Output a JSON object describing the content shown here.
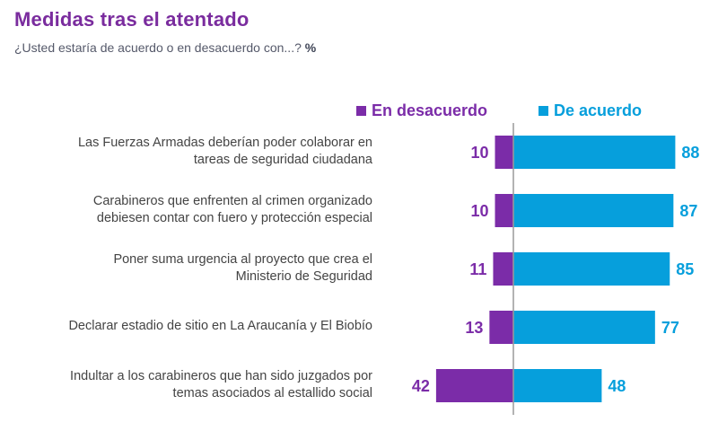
{
  "title": "Medidas tras el atentado",
  "subtitle": "¿Usted estaría de acuerdo o en desacuerdo con...?",
  "unit": "%",
  "colors": {
    "title": "#7a2c9e",
    "desacuerdo": "#7b2ca8",
    "acuerdo": "#069fdc",
    "label": "#444444",
    "axis": "#9a9a9a"
  },
  "chart_data": {
    "type": "bar",
    "orientation": "horizontal-diverging",
    "title": "Medidas tras el atentado",
    "subtitle": "¿Usted estaría de acuerdo o en desacuerdo con...? %",
    "xlabel": "",
    "ylabel": "",
    "legend_position": "top",
    "grid": false,
    "xlim": [
      -50,
      100
    ],
    "categories": [
      "Las Fuerzas Armadas deberían poder colaborar en tareas de seguridad ciudadana",
      "Carabineros que enfrenten al crimen organizado debiesen contar con fuero y protección especial",
      "Poner suma urgencia al proyecto que crea el Ministerio de Seguridad",
      "Declarar estadio de sitio en La Araucanía y El Biobío",
      "Indultar a los carabineros que han sido juzgados por temas asociados al estallido social"
    ],
    "category_lines": [
      [
        "Las Fuerzas Armadas deberían poder colaborar en",
        "tareas de seguridad ciudadana"
      ],
      [
        "Carabineros que enfrenten al crimen organizado",
        "debiesen contar con fuero y protección especial"
      ],
      [
        "Poner suma urgencia al proyecto que crea el",
        "Ministerio de Seguridad"
      ],
      [
        "Declarar estadio de sitio en La Araucanía y El Biobío"
      ],
      [
        "Indultar a los carabineros que han sido juzgados por",
        "temas asociados al estallido social"
      ]
    ],
    "series": [
      {
        "name": "En desacuerdo",
        "color": "#7b2ca8",
        "values": [
          10,
          10,
          11,
          13,
          42
        ]
      },
      {
        "name": "De acuerdo",
        "color": "#069fdc",
        "values": [
          88,
          87,
          85,
          77,
          48
        ]
      }
    ]
  }
}
